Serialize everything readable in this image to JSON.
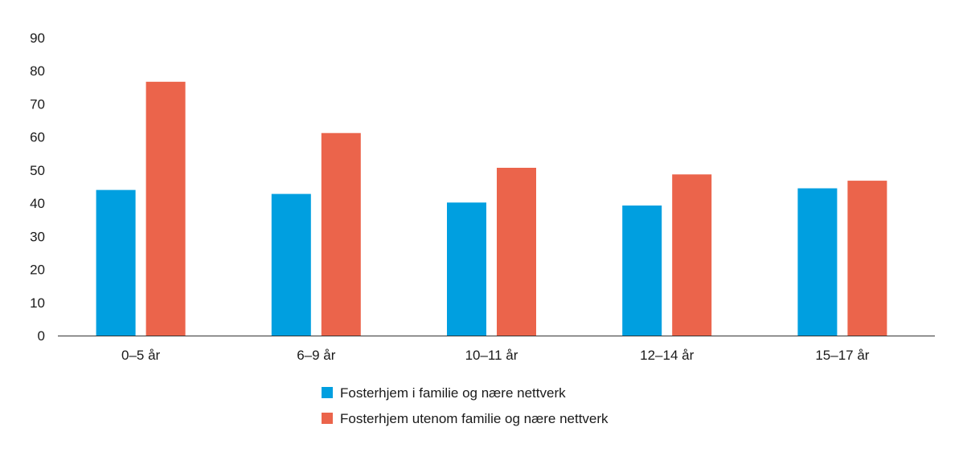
{
  "chart_data": {
    "type": "bar",
    "title": "",
    "xlabel": "",
    "ylabel": "",
    "ylim": [
      0,
      90
    ],
    "yticks": [
      0,
      10,
      20,
      30,
      40,
      50,
      60,
      70,
      80,
      90
    ],
    "grid": false,
    "legend_position": "bottom-center",
    "categories": [
      "0–5 år",
      "6–9 år",
      "10–11 år",
      "12–14 år",
      "15–17 år"
    ],
    "series": [
      {
        "name": "Fosterhjem i familie og nære nettverk",
        "color": "#009fe0",
        "values": [
          44,
          42.8,
          40.2,
          39.3,
          44.5
        ]
      },
      {
        "name": "Fosterhjem utenom familie og nære nettverk",
        "color": "#eb644b",
        "values": [
          76.7,
          61.2,
          50.7,
          48.7,
          46.8
        ]
      }
    ]
  }
}
